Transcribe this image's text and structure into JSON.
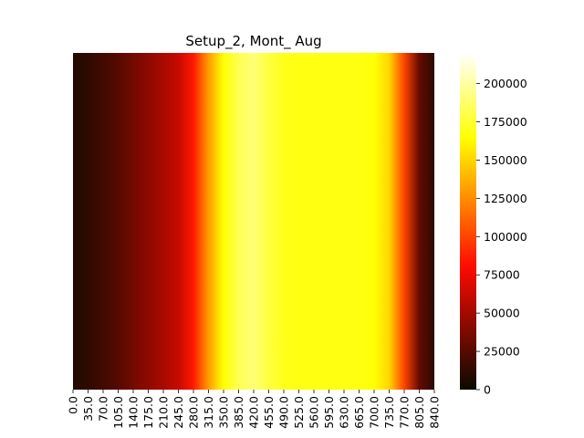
{
  "chart_data": {
    "type": "heatmap",
    "title": "Setup_2, Mont_ Aug",
    "xlabel": "",
    "ylabel": "",
    "colormap": "hot",
    "x_tick_labels": [
      "0.0",
      "35.0",
      "70.0",
      "105.0",
      "140.0",
      "175.0",
      "210.0",
      "245.0",
      "280.0",
      "315.0",
      "350.0",
      "385.0",
      "420.0",
      "455.0",
      "490.0",
      "525.0",
      "560.0",
      "595.0",
      "630.0",
      "665.0",
      "700.0",
      "735.0",
      "770.0",
      "805.0",
      "840.0"
    ],
    "x_step": 35,
    "x": [
      0,
      35,
      70,
      105,
      140,
      175,
      210,
      245,
      280,
      315,
      350,
      385,
      420,
      455,
      490,
      525,
      560,
      595,
      630,
      665,
      700,
      735,
      770,
      805,
      840
    ],
    "values": [
      8000,
      12000,
      18000,
      25000,
      34000,
      43000,
      52000,
      62000,
      85000,
      130000,
      165000,
      182000,
      190000,
      178000,
      170000,
      168000,
      168000,
      168000,
      168000,
      168000,
      165000,
      150000,
      100000,
      30000,
      10000
    ],
    "colorbar": {
      "vmin": 0,
      "vmax": 220000,
      "tick_values": [
        0,
        25000,
        50000,
        75000,
        100000,
        125000,
        150000,
        175000,
        200000
      ],
      "tick_labels": [
        "0",
        "25000",
        "50000",
        "75000",
        "100000",
        "125000",
        "150000",
        "175000",
        "200000"
      ]
    }
  }
}
